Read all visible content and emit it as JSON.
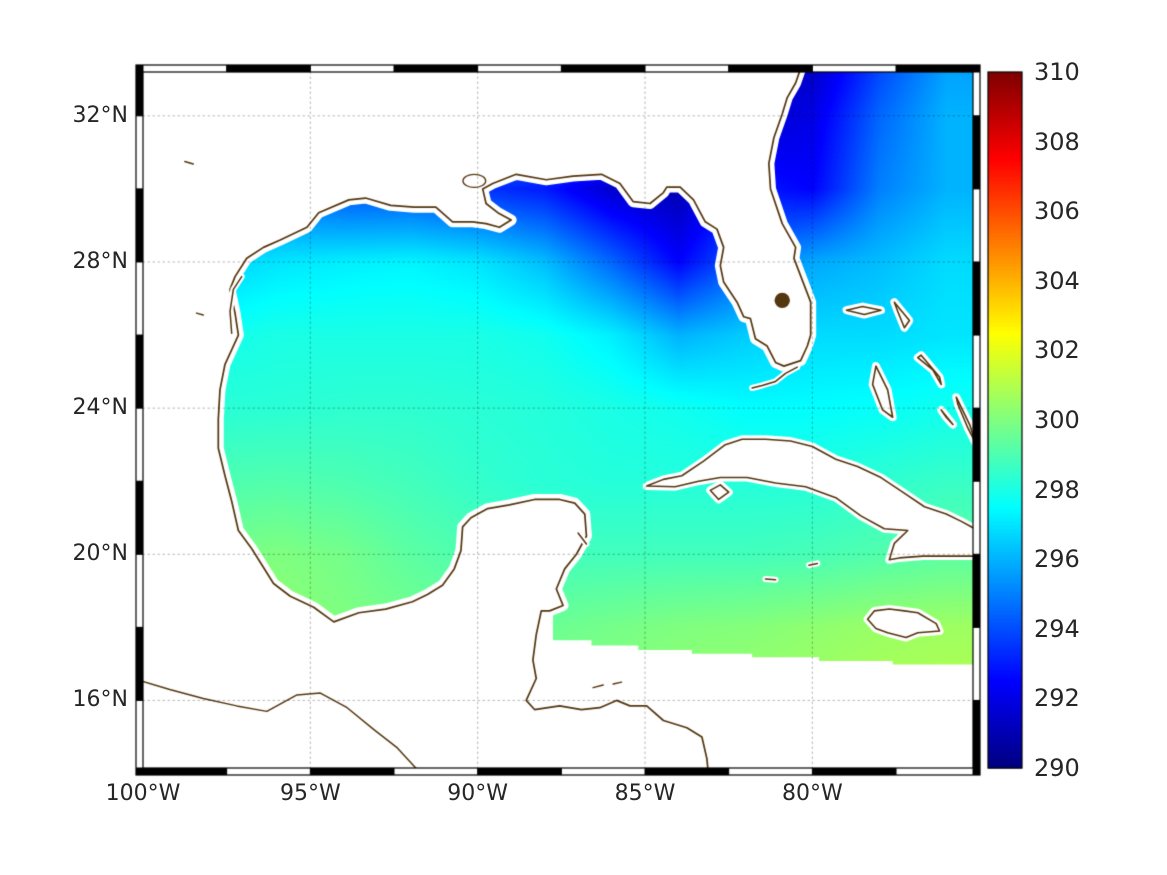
{
  "figure": {
    "background": "#ffffff",
    "label_color": "#262626",
    "frame_color": "#000000"
  },
  "chart_data": {
    "type": "heatmap",
    "title": "",
    "extent": {
      "lon_min": -100,
      "lon_max": -75.2,
      "lat_min": 14.15,
      "lat_max": 33.2
    },
    "x_ticks": [
      {
        "lon": -100,
        "label": "100°W"
      },
      {
        "lon": -95,
        "label": "95°W"
      },
      {
        "lon": -90,
        "label": "90°W"
      },
      {
        "lon": -85,
        "label": "85°W"
      },
      {
        "lon": -80,
        "label": "80°W"
      }
    ],
    "y_ticks": [
      {
        "lat": 32,
        "label": "32°N"
      },
      {
        "lat": 28,
        "label": "28°N"
      },
      {
        "lat": 24,
        "label": "24°N"
      },
      {
        "lat": 20,
        "label": "20°N"
      },
      {
        "lat": 16,
        "label": "16°N"
      }
    ],
    "colorbar": {
      "min": 290,
      "max": 310,
      "colormap": "jet",
      "ticks": [
        {
          "value": 310,
          "label": "310"
        },
        {
          "value": 308,
          "label": "308"
        },
        {
          "value": 306,
          "label": "306"
        },
        {
          "value": 304,
          "label": "304"
        },
        {
          "value": 302,
          "label": "302"
        },
        {
          "value": 300,
          "label": "300"
        },
        {
          "value": 298,
          "label": "298"
        },
        {
          "value": 296,
          "label": "296"
        },
        {
          "value": 294,
          "label": "294"
        },
        {
          "value": 292,
          "label": "292"
        },
        {
          "value": 290,
          "label": "290"
        }
      ]
    },
    "grid": {
      "lons": [
        -100,
        -98,
        -96,
        -94,
        -92,
        -90,
        -88,
        -86,
        -84,
        -82,
        -80,
        -78,
        -76
      ],
      "lats": [
        14,
        16,
        18,
        20,
        22,
        24,
        26,
        28,
        30,
        32,
        34
      ],
      "values": [
        [
          300.8,
          300.8,
          300.8,
          300.6,
          300.5,
          300.4,
          300.4,
          300.5,
          300.6,
          300.8,
          300.9,
          301.0,
          301.0
        ],
        [
          300.5,
          300.5,
          300.5,
          300.3,
          300.2,
          300.0,
          300.0,
          300.2,
          300.4,
          300.5,
          300.7,
          300.9,
          301.0
        ],
        [
          300.0,
          300.2,
          300.3,
          300.0,
          299.8,
          299.6,
          299.6,
          299.8,
          300.0,
          300.1,
          300.3,
          300.5,
          300.6
        ],
        [
          299.5,
          299.8,
          300.0,
          299.8,
          299.3,
          299.0,
          298.8,
          298.8,
          298.8,
          298.8,
          298.9,
          299.1,
          299.3
        ],
        [
          298.8,
          299.0,
          299.1,
          299.0,
          298.8,
          298.5,
          298.3,
          298.2,
          298.2,
          298.2,
          298.2,
          298.4,
          298.6
        ],
        [
          298.2,
          298.3,
          298.3,
          298.4,
          298.4,
          298.3,
          298.2,
          298.0,
          297.8,
          297.5,
          297.5,
          297.6,
          297.8
        ],
        [
          297.5,
          297.8,
          298.0,
          298.0,
          298.0,
          298.0,
          297.8,
          297.2,
          296.0,
          296.5,
          296.8,
          296.8,
          297.0
        ],
        [
          296.5,
          296.5,
          297.0,
          297.2,
          297.3,
          297.0,
          296.2,
          294.5,
          292.5,
          294.5,
          295.8,
          296.2,
          296.8
        ],
        [
          295.0,
          295.0,
          294.5,
          294.0,
          294.0,
          293.5,
          293.0,
          291.5,
          291.0,
          293.0,
          292.5,
          295.0,
          296.0
        ],
        [
          296.0,
          296.0,
          296.0,
          296.0,
          296.0,
          296.0,
          296.0,
          295.0,
          293.0,
          291.5,
          292.0,
          294.5,
          296.0
        ],
        [
          296.0,
          296.0,
          296.0,
          296.0,
          296.0,
          296.0,
          296.0,
          296.0,
          294.0,
          292.0,
          291.0,
          293.5,
          295.5
        ]
      ]
    },
    "coastlines": {
      "color": "#54360f",
      "mainland": [
        [
          -80.35,
          33.3
        ],
        [
          -80.5,
          32.9
        ],
        [
          -80.75,
          32.5
        ],
        [
          -80.9,
          32.05
        ],
        [
          -81.15,
          31.4
        ],
        [
          -81.3,
          30.7
        ],
        [
          -81.25,
          30.0
        ],
        [
          -80.9,
          29.05
        ],
        [
          -80.5,
          28.4
        ],
        [
          -80.55,
          28.1
        ],
        [
          -80.05,
          26.9
        ],
        [
          -80.05,
          26.0
        ],
        [
          -80.15,
          25.7
        ],
        [
          -80.35,
          25.3
        ],
        [
          -80.85,
          25.15
        ],
        [
          -81.1,
          25.25
        ],
        [
          -81.35,
          25.7
        ],
        [
          -81.7,
          25.9
        ],
        [
          -81.85,
          26.45
        ],
        [
          -82.05,
          26.5
        ],
        [
          -82.25,
          26.9
        ],
        [
          -82.65,
          27.45
        ],
        [
          -82.75,
          27.9
        ],
        [
          -82.65,
          28.4
        ],
        [
          -82.85,
          28.9
        ],
        [
          -83.2,
          29.1
        ],
        [
          -83.55,
          29.7
        ],
        [
          -83.95,
          30.05
        ],
        [
          -84.35,
          30.05
        ],
        [
          -84.45,
          29.9
        ],
        [
          -84.85,
          29.6
        ],
        [
          -85.35,
          29.65
        ],
        [
          -85.75,
          30.15
        ],
        [
          -86.3,
          30.4
        ],
        [
          -87.15,
          30.35
        ],
        [
          -87.95,
          30.25
        ],
        [
          -88.85,
          30.4
        ],
        [
          -89.55,
          30.15
        ],
        [
          -89.85,
          30.0
        ],
        [
          -89.75,
          29.6
        ],
        [
          -89.4,
          29.35
        ],
        [
          -89.0,
          29.15
        ],
        [
          -89.35,
          28.95
        ],
        [
          -89.75,
          29.05
        ],
        [
          -90.15,
          29.1
        ],
        [
          -90.75,
          29.1
        ],
        [
          -91.25,
          29.5
        ],
        [
          -91.9,
          29.5
        ],
        [
          -92.6,
          29.55
        ],
        [
          -93.35,
          29.75
        ],
        [
          -93.85,
          29.7
        ],
        [
          -94.75,
          29.35
        ],
        [
          -95.1,
          28.95
        ],
        [
          -95.9,
          28.6
        ],
        [
          -96.4,
          28.4
        ],
        [
          -96.9,
          28.1
        ],
        [
          -97.25,
          27.6
        ],
        [
          -97.4,
          27.25
        ],
        [
          -97.25,
          26.6
        ],
        [
          -97.15,
          26.0
        ],
        [
          -97.55,
          25.2
        ],
        [
          -97.7,
          24.5
        ],
        [
          -97.75,
          23.7
        ],
        [
          -97.75,
          22.9
        ],
        [
          -97.55,
          22.15
        ],
        [
          -97.35,
          21.45
        ],
        [
          -97.15,
          20.65
        ],
        [
          -96.75,
          20.15
        ],
        [
          -96.1,
          19.2
        ],
        [
          -95.6,
          18.85
        ],
        [
          -94.9,
          18.55
        ],
        [
          -94.3,
          18.15
        ],
        [
          -93.55,
          18.4
        ],
        [
          -92.75,
          18.5
        ],
        [
          -91.95,
          18.7
        ],
        [
          -91.5,
          18.9
        ],
        [
          -91.05,
          19.15
        ],
        [
          -90.7,
          19.6
        ],
        [
          -90.5,
          20.1
        ],
        [
          -90.45,
          20.75
        ],
        [
          -90.2,
          21.0
        ],
        [
          -89.7,
          21.25
        ],
        [
          -89.05,
          21.35
        ],
        [
          -88.3,
          21.5
        ],
        [
          -87.55,
          21.5
        ],
        [
          -87.1,
          21.4
        ],
        [
          -86.8,
          21.1
        ],
        [
          -86.75,
          20.5
        ],
        [
          -87.05,
          20.0
        ],
        [
          -87.4,
          19.6
        ],
        [
          -87.65,
          19.05
        ],
        [
          -87.45,
          18.6
        ],
        [
          -87.85,
          18.45
        ],
        [
          -88.1,
          18.45
        ],
        [
          -88.25,
          17.8
        ],
        [
          -88.35,
          17.1
        ],
        [
          -88.25,
          16.6
        ],
        [
          -88.55,
          16.0
        ],
        [
          -88.3,
          15.75
        ],
        [
          -87.55,
          15.85
        ],
        [
          -86.9,
          15.75
        ],
        [
          -86.35,
          15.8
        ],
        [
          -85.85,
          16.0
        ],
        [
          -85.45,
          15.85
        ],
        [
          -84.95,
          15.85
        ],
        [
          -84.45,
          15.45
        ],
        [
          -83.75,
          15.25
        ],
        [
          -83.3,
          15.0
        ],
        [
          -83.15,
          14.4
        ],
        [
          -83.1,
          13.9
        ]
      ],
      "mainland_closure": [
        [
          -83.0,
          13.4
        ],
        [
          -101.5,
          13.4
        ],
        [
          -101.5,
          33.8
        ],
        [
          -80.3,
          33.8
        ]
      ],
      "pacific_coast": [
        [
          -100.3,
          16.6
        ],
        [
          -99.2,
          16.3
        ],
        [
          -98.2,
          16.05
        ],
        [
          -97.2,
          15.85
        ],
        [
          -96.3,
          15.7
        ],
        [
          -95.4,
          16.15
        ],
        [
          -94.7,
          16.2
        ],
        [
          -93.9,
          15.8
        ],
        [
          -93.1,
          15.2
        ],
        [
          -92.4,
          14.7
        ],
        [
          -91.8,
          14.1
        ],
        [
          -91.4,
          13.7
        ]
      ],
      "islands": [
        [
          [
            -84.95,
            21.87
          ],
          [
            -84.45,
            22.05
          ],
          [
            -83.9,
            22.15
          ],
          [
            -83.25,
            22.55
          ],
          [
            -82.6,
            23.0
          ],
          [
            -82.1,
            23.15
          ],
          [
            -81.4,
            23.15
          ],
          [
            -80.65,
            23.1
          ],
          [
            -80.0,
            22.95
          ],
          [
            -79.3,
            22.6
          ],
          [
            -78.65,
            22.4
          ],
          [
            -77.95,
            22.1
          ],
          [
            -77.3,
            21.7
          ],
          [
            -76.65,
            21.3
          ],
          [
            -76.0,
            21.1
          ],
          [
            -75.55,
            20.9
          ],
          [
            -75.15,
            20.7
          ],
          [
            -75.15,
            19.95
          ],
          [
            -75.9,
            19.95
          ],
          [
            -76.7,
            19.95
          ],
          [
            -77.4,
            19.9
          ],
          [
            -77.7,
            19.85
          ],
          [
            -77.55,
            20.3
          ],
          [
            -77.15,
            20.65
          ],
          [
            -77.85,
            20.7
          ],
          [
            -78.55,
            21.05
          ],
          [
            -79.3,
            21.55
          ],
          [
            -80.2,
            21.85
          ],
          [
            -81.1,
            21.95
          ],
          [
            -81.95,
            22.1
          ],
          [
            -82.75,
            22.1
          ],
          [
            -83.4,
            22.0
          ],
          [
            -84.1,
            21.85
          ]
        ],
        [
          [
            -78.35,
            18.22
          ],
          [
            -78.15,
            18.45
          ],
          [
            -77.7,
            18.5
          ],
          [
            -77.25,
            18.45
          ],
          [
            -76.85,
            18.4
          ],
          [
            -76.3,
            18.1
          ],
          [
            -76.2,
            17.9
          ],
          [
            -76.85,
            17.85
          ],
          [
            -77.2,
            17.72
          ],
          [
            -77.75,
            17.85
          ],
          [
            -78.1,
            17.97
          ]
        ],
        [
          [
            -78.98,
            26.68
          ],
          [
            -78.45,
            26.56
          ],
          [
            -77.95,
            26.68
          ],
          [
            -78.5,
            26.78
          ]
        ],
        [
          [
            -77.55,
            26.9
          ],
          [
            -77.1,
            26.4
          ],
          [
            -77.25,
            26.2
          ],
          [
            -77.45,
            26.65
          ]
        ],
        [
          [
            -78.1,
            25.15
          ],
          [
            -77.75,
            24.5
          ],
          [
            -77.6,
            23.75
          ],
          [
            -77.9,
            23.95
          ],
          [
            -78.2,
            24.65
          ]
        ],
        [
          [
            -76.75,
            25.45
          ],
          [
            -76.2,
            24.85
          ],
          [
            -76.15,
            24.65
          ],
          [
            -76.4,
            25.05
          ],
          [
            -76.85,
            25.38
          ]
        ],
        [
          [
            -75.7,
            24.3
          ],
          [
            -75.3,
            23.55
          ],
          [
            -75.1,
            23.0
          ],
          [
            -75.35,
            23.45
          ],
          [
            -75.65,
            24.1
          ]
        ],
        [
          [
            -76.15,
            23.95
          ],
          [
            -75.8,
            23.55
          ],
          [
            -76.0,
            23.75
          ]
        ],
        [
          [
            -83.05,
            21.75
          ],
          [
            -82.75,
            21.9
          ],
          [
            -82.5,
            21.7
          ],
          [
            -82.8,
            21.5
          ]
        ]
      ],
      "islets": [
        [
          [
            -80.45,
            25.12
          ],
          [
            -80.8,
            24.95
          ],
          [
            -81.1,
            24.73
          ],
          [
            -81.5,
            24.62
          ],
          [
            -81.8,
            24.55
          ]
        ],
        [
          [
            -81.4,
            19.32
          ],
          [
            -81.1,
            19.3
          ]
        ],
        [
          [
            -80.1,
            19.7
          ],
          [
            -79.85,
            19.75
          ]
        ],
        [
          [
            -87.0,
            20.58
          ],
          [
            -86.75,
            20.28
          ]
        ],
        [
          [
            -86.55,
            16.35
          ],
          [
            -86.25,
            16.42
          ]
        ],
        [
          [
            -85.95,
            16.45
          ],
          [
            -85.7,
            16.5
          ]
        ],
        [
          [
            -97.35,
            26.05
          ],
          [
            -97.4,
            26.65
          ],
          [
            -97.3,
            27.25
          ],
          [
            -97.05,
            27.6
          ]
        ],
        [
          [
            -98.75,
            30.75
          ],
          [
            -98.5,
            30.68
          ]
        ],
        [
          [
            -98.4,
            26.6
          ],
          [
            -98.2,
            26.55
          ]
        ]
      ],
      "lakes": [
        [
          -80.9,
          26.95,
          0.23,
          0.21,
          1
        ],
        [
          -90.1,
          30.22,
          0.34,
          0.18,
          0
        ]
      ],
      "nodata_region": [
        [
          -88.7,
          18.5
        ],
        [
          -87.75,
          18.5
        ],
        [
          -87.75,
          17.65
        ],
        [
          -86.6,
          17.65
        ],
        [
          -86.6,
          17.5
        ],
        [
          -85.2,
          17.5
        ],
        [
          -85.2,
          17.38
        ],
        [
          -83.6,
          17.38
        ],
        [
          -83.6,
          17.28
        ],
        [
          -81.8,
          17.28
        ],
        [
          -81.8,
          17.18
        ],
        [
          -79.8,
          17.18
        ],
        [
          -79.8,
          17.08
        ],
        [
          -77.6,
          17.08
        ],
        [
          -77.6,
          16.98
        ],
        [
          -74.9,
          16.98
        ],
        [
          -74.9,
          13.5
        ],
        [
          -88.7,
          13.5
        ]
      ]
    }
  }
}
